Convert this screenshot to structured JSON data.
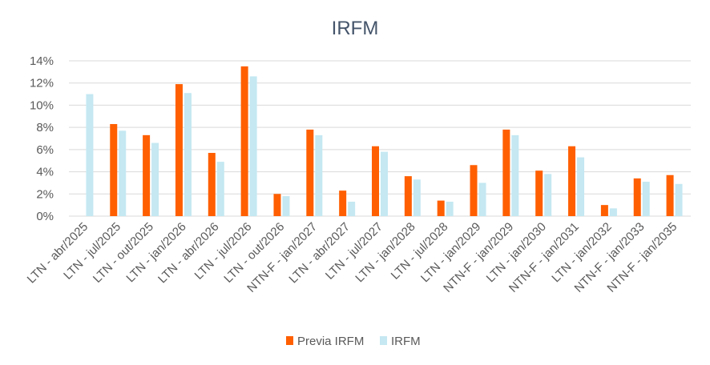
{
  "chart_data": {
    "type": "bar",
    "title": "IRFM",
    "categories": [
      "LTN - abr/2025",
      "LTN - jul/2025",
      "LTN - out/2025",
      "LTN - jan/2026",
      "LTN - abr/2026",
      "LTN - jul/2026",
      "LTN - out/2026",
      "NTN-F - jan/2027",
      "LTN - abr/2027",
      "LTN - jul/2027",
      "LTN - jan/2028",
      "LTN - jul/2028",
      "LTN - jan/2029",
      "NTN-F - jan/2029",
      "LTN - jan/2030",
      "NTN-F - jan/2031",
      "LTN - jan/2032",
      "NTN-F - jan/2033",
      "NTN-F - jan/2035"
    ],
    "series": [
      {
        "name": "Previa IRFM",
        "color": "#ff5f00",
        "values": [
          0.0,
          8.3,
          7.3,
          11.9,
          5.7,
          13.5,
          2.0,
          7.8,
          2.3,
          6.3,
          3.6,
          1.4,
          4.6,
          7.8,
          4.1,
          6.3,
          1.0,
          3.4,
          3.7
        ]
      },
      {
        "name": "IRFM",
        "color": "#c5e8f2",
        "values": [
          11.0,
          7.7,
          6.6,
          11.1,
          4.9,
          12.6,
          1.8,
          7.3,
          1.3,
          5.8,
          3.3,
          1.3,
          3.0,
          7.3,
          3.8,
          5.3,
          0.7,
          3.1,
          2.9
        ]
      }
    ],
    "ylim": [
      0,
      14
    ],
    "yticks": [
      0,
      2,
      4,
      6,
      8,
      10,
      12,
      14
    ],
    "ytick_labels": [
      "0%",
      "2%",
      "4%",
      "6%",
      "8%",
      "10%",
      "12%",
      "14%"
    ],
    "grid": true,
    "legend_position": "bottom"
  },
  "colors": {
    "axis_text": "#595959",
    "title": "#44546a",
    "grid": "#d9d9d9"
  }
}
